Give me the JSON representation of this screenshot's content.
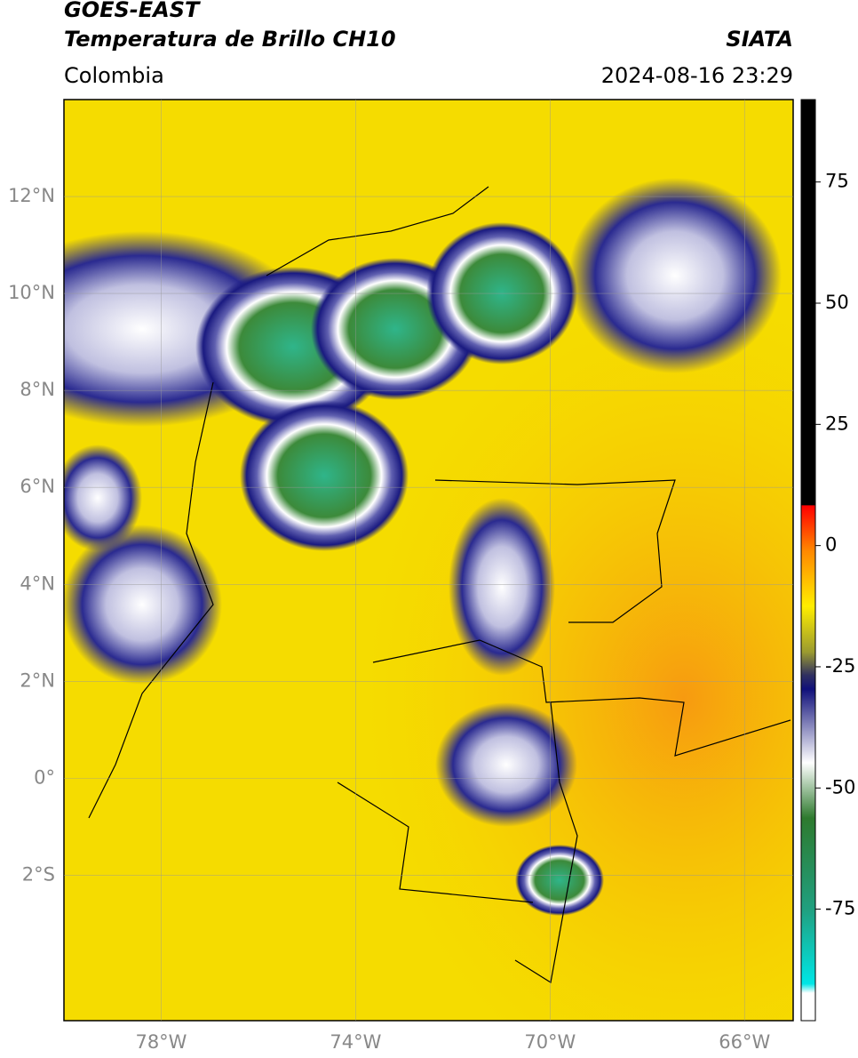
{
  "header": {
    "title": "GOES-EAST",
    "subtitle": "Temperatura de Brillo CH10",
    "region": "Colombia",
    "source": "SIATA",
    "timestamp": "2024-08-16 23:29"
  },
  "map": {
    "lonlim": [
      -80,
      -65
    ],
    "latlim": [
      -5,
      14
    ],
    "lat_ticks": [
      {
        "value": 12,
        "label": "12°N"
      },
      {
        "value": 10,
        "label": "10°N"
      },
      {
        "value": 8,
        "label": "8°N"
      },
      {
        "value": 6,
        "label": "6°N"
      },
      {
        "value": 4,
        "label": "4°N"
      },
      {
        "value": 2,
        "label": "2°N"
      },
      {
        "value": 0,
        "label": "0°"
      },
      {
        "value": -2,
        "label": "2°S"
      }
    ],
    "lon_ticks": [
      {
        "value": -78,
        "label": "78°W"
      },
      {
        "value": -74,
        "label": "74°W"
      },
      {
        "value": -70,
        "label": "70°W"
      },
      {
        "value": -66,
        "label": "66°W"
      }
    ]
  },
  "colorbar": {
    "range": [
      -98,
      92
    ],
    "ticks": [
      75,
      50,
      25,
      0,
      -25,
      -50,
      -75
    ]
  }
}
